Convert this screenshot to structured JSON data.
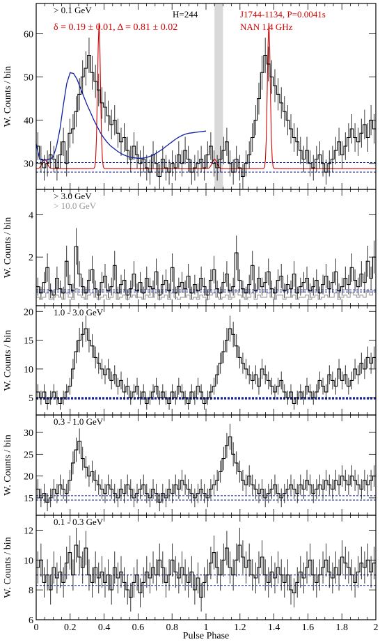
{
  "figure": {
    "xlabel": "Pulse Phase",
    "x_ticks": [
      "0",
      "0.2",
      "0.4",
      "0.6",
      "0.8",
      "1",
      "1.2",
      "1.4",
      "1.6",
      "1.8",
      "2"
    ],
    "shaded_band_phase": [
      1.05,
      1.1
    ]
  },
  "chart_data": [
    {
      "type": "line",
      "panel": "> 0.1 GeV",
      "ylabel": "W. Counts / bin",
      "energy_label": "> 0.1 GeV",
      "extra_labels": {
        "harmonic": "H=244",
        "fit_params": "δ = 0.19 ± 0.01, Δ = 0.81 ± 0.02",
        "pulsar": "J1744-1134, P=0.0041s",
        "radio": "NAN 1.4 GHz"
      },
      "ylim": [
        24,
        67
      ],
      "y_ticks": [
        30,
        40,
        50,
        60
      ],
      "baselines": [
        30.2,
        28.0
      ],
      "series": [
        {
          "values": [
            34,
            31,
            29,
            30,
            32,
            31,
            29,
            32,
            35,
            30,
            37,
            38,
            42,
            46,
            50,
            52,
            55,
            51,
            49,
            47,
            44,
            43,
            41,
            39,
            40,
            37,
            35,
            36,
            33,
            31,
            34,
            32,
            30,
            31,
            29,
            28,
            32,
            30,
            27,
            31,
            29,
            28,
            30,
            29,
            32,
            30,
            33,
            31,
            28,
            29,
            30,
            31,
            29,
            32,
            34,
            30,
            29,
            31,
            33,
            35,
            30,
            28,
            31,
            29,
            27,
            30,
            32,
            36,
            40,
            45,
            51,
            55,
            53,
            50,
            48,
            46,
            44,
            42,
            40,
            38,
            36,
            35,
            33,
            31,
            33,
            30,
            29,
            31,
            32,
            30,
            28,
            30,
            31,
            33,
            35,
            32,
            34,
            36,
            38,
            36,
            35,
            37,
            39,
            36,
            40,
            38
          ]
        }
      ],
      "fit_curve": {
        "x": [
          0.0,
          0.02,
          0.04,
          0.06,
          0.08,
          0.1,
          0.12,
          0.14,
          0.16,
          0.18,
          0.2,
          0.22,
          0.24,
          0.26,
          0.28,
          0.3,
          0.32,
          0.34,
          0.36,
          0.38,
          0.4,
          0.42,
          0.44,
          0.46,
          0.48,
          0.5,
          0.52,
          0.54,
          0.56,
          0.58,
          0.6,
          0.62,
          0.64,
          0.66,
          0.68,
          0.7,
          0.72,
          0.74,
          0.76,
          0.78,
          0.8,
          0.82,
          0.84,
          0.86,
          0.88,
          0.9,
          0.92,
          0.94,
          0.96,
          0.98,
          1.0
        ],
        "y": [
          34.5,
          31.0,
          30.8,
          30.8,
          31.0,
          31.5,
          34.0,
          38.0,
          43.5,
          48.5,
          51.0,
          50.8,
          49.5,
          47.5,
          45.5,
          43.5,
          41.8,
          40.0,
          38.5,
          37.0,
          35.8,
          34.8,
          34.0,
          33.4,
          32.8,
          32.3,
          31.9,
          31.6,
          31.4,
          31.3,
          31.2,
          31.2,
          31.3,
          31.5,
          31.8,
          32.2,
          32.7,
          33.2,
          33.8,
          34.4,
          35.0,
          35.6,
          36.1,
          36.5,
          36.8,
          37.0,
          37.1,
          37.2,
          37.3,
          37.4,
          37.5
        ]
      },
      "radio_profile": {
        "base": 28.8,
        "peaks_phase": [
          0.37,
          1.37
        ],
        "peak_height": 62.5,
        "small_bump_phase": [
          0.05,
          1.05
        ],
        "small_bump_height": 31.0
      }
    },
    {
      "type": "line",
      "panel": "> 3.0 GeV",
      "ylabel": "W. Counts / bin",
      "energy_label": "> 3.0 GeV",
      "extra_labels": {
        "secondary": "> 10.0 GeV"
      },
      "ylim": [
        -0.3,
        5.2
      ],
      "y_ticks": [
        2,
        4
      ],
      "baselines": [
        0.45,
        0.35
      ],
      "series": [
        {
          "values": [
            0.6,
            0.3,
            0.8,
            1.5,
            0.4,
            0.2,
            1.0,
            0.5,
            0.3,
            1.8,
            0.7,
            0.4,
            2.5,
            1.2,
            0.6,
            0.3,
            0.9,
            1.4,
            0.5,
            0.2,
            0.8,
            1.1,
            0.4,
            0.6,
            1.6,
            0.3,
            0.7,
            0.9,
            0.2,
            0.5,
            1.2,
            0.4,
            0.8,
            0.3,
            1.0,
            0.6,
            0.5,
            1.3,
            0.2,
            0.7,
            0.9,
            0.4,
            1.5,
            0.3,
            0.6,
            0.8,
            0.5,
            1.1,
            0.3,
            0.7,
            0.4,
            1.0,
            0.6,
            0.2,
            0.9,
            1.4,
            0.5,
            0.3,
            0.8,
            1.2,
            0.4,
            0.6,
            2.2,
            0.9,
            0.5,
            0.3,
            0.7,
            1.6,
            0.4,
            1.0,
            0.6,
            0.8,
            1.3,
            0.5,
            0.3,
            0.9,
            1.1,
            0.4,
            0.7,
            0.5,
            1.2,
            0.3,
            0.6,
            0.8,
            1.0,
            0.4,
            0.6,
            0.9,
            0.3,
            0.7,
            1.1,
            0.5,
            0.8,
            1.3,
            0.4,
            0.6,
            1.0,
            0.7,
            1.5,
            0.9,
            0.6,
            1.2,
            0.8,
            1.8,
            1.0,
            2.0
          ]
        },
        {
          "values": [
            0.1,
            0.0,
            0.1,
            0.3,
            0.0,
            0.1,
            0.2,
            0.1,
            0.0,
            0.3,
            0.1,
            0.0,
            0.5,
            0.2,
            0.1,
            0.0,
            0.2,
            0.3,
            0.1,
            0.0,
            0.1,
            0.2,
            0.0,
            0.1,
            0.3,
            0.0,
            0.1,
            0.2,
            0.0,
            0.1,
            0.2,
            0.1,
            0.1,
            0.0,
            0.2,
            0.1,
            0.1,
            0.3,
            0.0,
            0.1,
            0.2,
            0.0,
            0.3,
            0.1,
            0.0,
            0.1,
            0.1,
            0.2,
            0.0,
            0.1,
            0.0,
            0.2,
            0.1,
            0.0,
            0.2,
            0.3,
            0.1,
            0.0,
            0.1,
            0.2,
            0.0,
            0.1,
            0.4,
            0.2,
            0.1,
            0.0,
            0.1,
            0.3,
            0.0,
            0.2,
            0.1,
            0.1,
            0.3,
            0.1,
            0.0,
            0.2,
            0.2,
            0.0,
            0.1,
            0.1,
            0.2,
            0.0,
            0.1,
            0.1,
            0.2,
            0.0,
            0.1,
            0.2,
            0.0,
            0.1,
            0.2,
            0.1,
            0.1,
            0.3,
            0.0,
            0.1,
            0.2,
            0.1,
            0.3,
            0.2,
            0.1,
            0.2,
            0.1,
            0.4,
            0.2,
            0.4
          ]
        }
      ]
    },
    {
      "type": "line",
      "panel": "1.0 - 3.0 GeV",
      "ylabel": "W. Counts / bin",
      "energy_label": "1.0 - 3.0 GeV",
      "ylim": [
        2,
        21
      ],
      "y_ticks": [
        5,
        10,
        15,
        20
      ],
      "baselines": [
        5.0,
        4.8
      ],
      "series": [
        {
          "values": [
            6,
            5,
            6,
            4,
            5,
            6,
            5,
            4,
            5,
            6,
            7,
            10,
            13,
            15,
            16,
            17,
            15,
            14,
            12,
            11,
            10,
            9,
            10,
            8,
            9,
            7,
            8,
            6,
            7,
            5,
            6,
            7,
            5,
            6,
            4,
            5,
            6,
            7,
            5,
            6,
            5,
            4,
            6,
            5,
            7,
            6,
            5,
            4,
            6,
            5,
            7,
            6,
            4,
            5,
            6,
            7,
            9,
            11,
            13,
            15,
            17,
            16,
            14,
            12,
            11,
            10,
            9,
            8,
            9,
            7,
            10,
            9,
            8,
            7,
            6,
            7,
            8,
            6,
            5,
            6,
            4,
            5,
            6,
            5,
            7,
            6,
            5,
            6,
            8,
            7,
            6,
            9,
            8,
            7,
            10,
            8,
            9,
            7,
            8,
            10,
            9,
            11,
            10,
            12,
            11,
            12
          ]
        }
      ]
    },
    {
      "type": "line",
      "panel": "0.3 - 1.0 GeV",
      "ylabel": "W. Counts / bin",
      "energy_label": "0.3 - 1.0 GeV",
      "ylim": [
        11,
        34
      ],
      "y_ticks": [
        15,
        20,
        25,
        30
      ],
      "baselines": [
        15.5,
        14.5
      ],
      "series": [
        {
          "values": [
            17,
            15,
            16,
            14,
            15,
            17,
            16,
            18,
            17,
            16,
            19,
            23,
            26,
            28,
            24,
            22,
            20,
            21,
            19,
            18,
            17,
            16,
            18,
            17,
            16,
            15,
            17,
            16,
            18,
            17,
            15,
            16,
            17,
            18,
            16,
            15,
            17,
            16,
            14,
            16,
            15,
            17,
            16,
            18,
            17,
            19,
            18,
            17,
            16,
            15,
            16,
            17,
            16,
            15,
            17,
            18,
            19,
            21,
            24,
            27,
            29,
            25,
            23,
            21,
            19,
            18,
            20,
            18,
            17,
            16,
            17,
            15,
            16,
            17,
            18,
            16,
            15,
            16,
            17,
            18,
            17,
            16,
            18,
            17,
            19,
            18,
            16,
            17,
            18,
            17,
            19,
            18,
            17,
            19,
            18,
            20,
            19,
            18,
            20,
            19,
            18,
            17,
            19,
            18,
            19,
            20
          ]
        }
      ]
    },
    {
      "type": "line",
      "panel": "0.1 - 0.3 GeV",
      "ylabel": "W. Counts / bin",
      "energy_label": "0.1 - 0.3 GeV",
      "ylim": [
        6,
        13
      ],
      "y_ticks": [
        6,
        8,
        10,
        12
      ],
      "baselines": [
        9.0,
        8.3
      ],
      "series": [
        {
          "values": [
            9.5,
            10,
            8.5,
            9,
            8,
            9.5,
            8.8,
            9.2,
            8.5,
            9.8,
            10.5,
            9,
            11,
            10.2,
            9.5,
            10.8,
            9,
            8.5,
            9.5,
            8.8,
            9.2,
            8.5,
            9,
            8,
            9.5,
            8.8,
            9.2,
            8.5,
            8,
            7.5,
            8.5,
            9,
            7.8,
            8.5,
            9.2,
            8.8,
            9.5,
            9,
            10,
            9.5,
            8.5,
            9,
            10,
            9.2,
            8.8,
            9.5,
            9,
            8.5,
            9.2,
            8,
            8.8,
            7.5,
            8.5,
            9,
            9.8,
            10.5,
            9.5,
            9,
            10,
            10.8,
            9.5,
            9,
            10,
            11,
            10.2,
            9.5,
            10,
            9,
            8.8,
            9.5,
            10.2,
            9,
            8.5,
            9.2,
            8.8,
            9.5,
            9,
            8.5,
            9,
            8,
            7.8,
            8.5,
            9.2,
            8.8,
            9.5,
            10,
            9,
            8.5,
            9,
            9.5,
            10,
            9.2,
            8.8,
            9.5,
            9,
            10.2,
            9.8,
            9.5,
            9,
            8.5,
            9.2,
            9.8,
            9.5,
            10,
            9.2,
            9.8
          ]
        }
      ]
    }
  ]
}
